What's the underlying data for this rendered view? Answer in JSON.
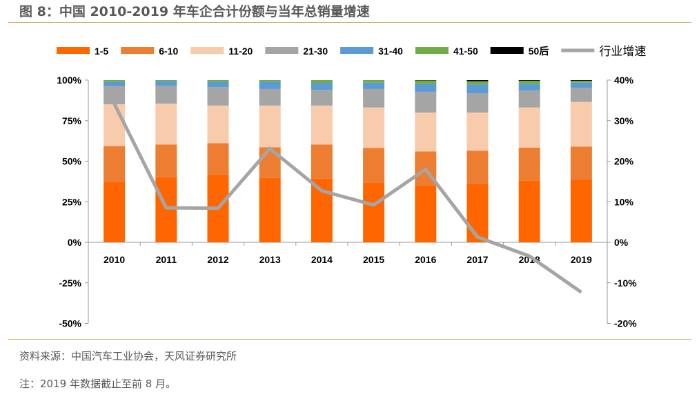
{
  "header": {
    "title": "图 8：中国 2010-2019 年车企合计份额与当年总销量增速"
  },
  "footer": {
    "source": "资料来源：中国汽车工业协会，天风证券研究所",
    "note": "注：2019 年数据截止至前 8 月。"
  },
  "chart_data": {
    "type": "bar",
    "stacked": true,
    "categories": [
      "2010",
      "2011",
      "2012",
      "2013",
      "2014",
      "2015",
      "2016",
      "2017",
      "2018",
      "2019"
    ],
    "y_left": {
      "range": [
        -50,
        100
      ],
      "ticks": [
        "-50%",
        "-25%",
        "0%",
        "25%",
        "50%",
        "75%",
        "100%"
      ],
      "tick_values": [
        -50,
        -25,
        0,
        25,
        50,
        75,
        100
      ]
    },
    "y_right": {
      "range": [
        -20,
        40
      ],
      "ticks": [
        "-20%",
        "-10%",
        "0%",
        "10%",
        "20%",
        "30%",
        "40%"
      ],
      "tick_values": [
        -20,
        -10,
        0,
        10,
        20,
        30,
        40
      ]
    },
    "legend_position": "top",
    "grid": false,
    "series": [
      {
        "name": "1-5",
        "color": "#FF6600",
        "values": [
          37.2,
          40.1,
          41.8,
          39.7,
          39.3,
          36.9,
          35.2,
          36.0,
          38.2,
          38.7
        ]
      },
      {
        "name": "6-10",
        "color": "#ED7D31",
        "values": [
          22.1,
          20.2,
          19.3,
          18.9,
          21.0,
          21.3,
          20.8,
          20.5,
          20.1,
          20.3
        ]
      },
      {
        "name": "11-20",
        "color": "#F8CBAD",
        "values": [
          25.8,
          25.2,
          23.2,
          25.7,
          24.0,
          24.9,
          24.0,
          23.5,
          24.8,
          27.5
        ]
      },
      {
        "name": "21-30",
        "color": "#A5A5A5",
        "values": [
          11.1,
          11.1,
          11.4,
          10.2,
          9.7,
          11.4,
          12.8,
          11.9,
          10.4,
          8.8
        ]
      },
      {
        "name": "31-40",
        "color": "#5B9BD5",
        "values": [
          2.8,
          2.8,
          3.3,
          4.5,
          4.3,
          3.9,
          4.8,
          5.4,
          4.1,
          3.1
        ]
      },
      {
        "name": "41-50",
        "color": "#70AD47",
        "values": [
          1.0,
          0.6,
          1.0,
          1.0,
          1.7,
          1.6,
          2.2,
          2.0,
          2.0,
          1.2
        ]
      },
      {
        "name": "50后",
        "color": "#000000",
        "values": [
          0,
          0,
          0,
          0,
          0,
          0,
          0.2,
          0.7,
          0.4,
          0.4
        ]
      }
    ],
    "line": {
      "name": "行业增速",
      "color": "#A5A5A5",
      "axis": "right",
      "values": [
        34.2,
        8.5,
        8.4,
        23.1,
        12.7,
        9.2,
        18.0,
        1.3,
        -3.4,
        -12.3
      ]
    }
  }
}
